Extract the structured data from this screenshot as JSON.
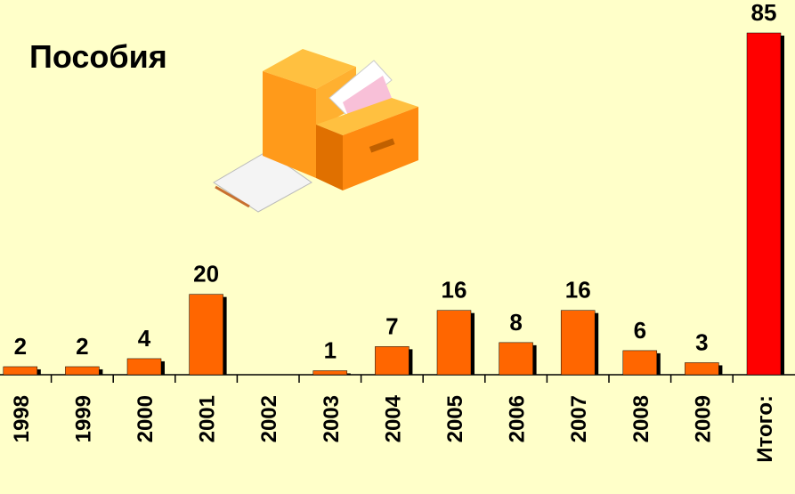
{
  "chart_data": {
    "type": "bar",
    "title": "Пособия",
    "categories": [
      "1998",
      "1999",
      "2000",
      "2001",
      "2002",
      "2003",
      "2004",
      "2005",
      "2006",
      "2007",
      "2008",
      "2009",
      "Итого:"
    ],
    "values": [
      2,
      2,
      4,
      20,
      null,
      1,
      7,
      16,
      8,
      16,
      6,
      3,
      85
    ],
    "colors": [
      "#ff6600",
      "#ff6600",
      "#ff6600",
      "#ff6600",
      "#ff6600",
      "#ff6600",
      "#ff6600",
      "#ff6600",
      "#ff6600",
      "#ff6600",
      "#ff6600",
      "#ff6600",
      "#ff0000"
    ]
  }
}
